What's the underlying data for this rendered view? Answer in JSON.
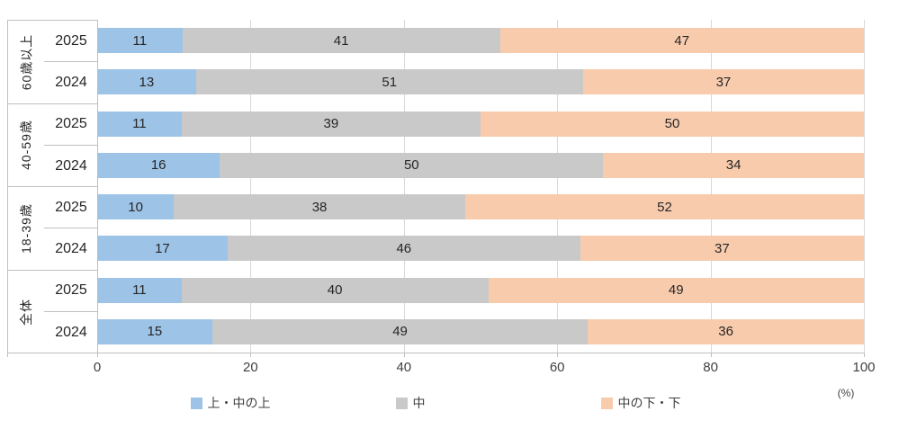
{
  "chart_data": {
    "type": "bar",
    "orientation": "horizontal-stacked",
    "series_names": [
      "上・中の上",
      "中",
      "中の下・下"
    ],
    "series_colors": [
      "#9dc3e6",
      "#c9c9c9",
      "#f8cbad"
    ],
    "groups": [
      {
        "label": "60歳以上",
        "rows": [
          {
            "year": "2025",
            "values": [
              11,
              41,
              47
            ]
          },
          {
            "year": "2024",
            "values": [
              13,
              51,
              37
            ]
          }
        ]
      },
      {
        "label": "40-59歳",
        "rows": [
          {
            "year": "2025",
            "values": [
              11,
              39,
              50
            ]
          },
          {
            "year": "2024",
            "values": [
              16,
              50,
              34
            ]
          }
        ]
      },
      {
        "label": "18-39歳",
        "rows": [
          {
            "year": "2025",
            "values": [
              10,
              38,
              52
            ]
          },
          {
            "year": "2024",
            "values": [
              17,
              46,
              37
            ]
          }
        ]
      },
      {
        "label": "全体",
        "rows": [
          {
            "year": "2025",
            "values": [
              11,
              40,
              49
            ]
          },
          {
            "year": "2024",
            "values": [
              15,
              49,
              36
            ]
          }
        ]
      }
    ],
    "x_ticks": [
      0,
      20,
      40,
      60,
      80,
      100
    ],
    "xlim": [
      0,
      100
    ],
    "x_unit": "(%)",
    "legend": [
      "上・中の上",
      "中",
      "中の下・下"
    ],
    "legend_position": "bottom",
    "grid": "vertical-only",
    "colors": {
      "gridline": "#d9d9d9",
      "axis": "#bfbfbf",
      "text": "#262626",
      "tick_text": "#404040",
      "background": "#ffffff"
    }
  }
}
